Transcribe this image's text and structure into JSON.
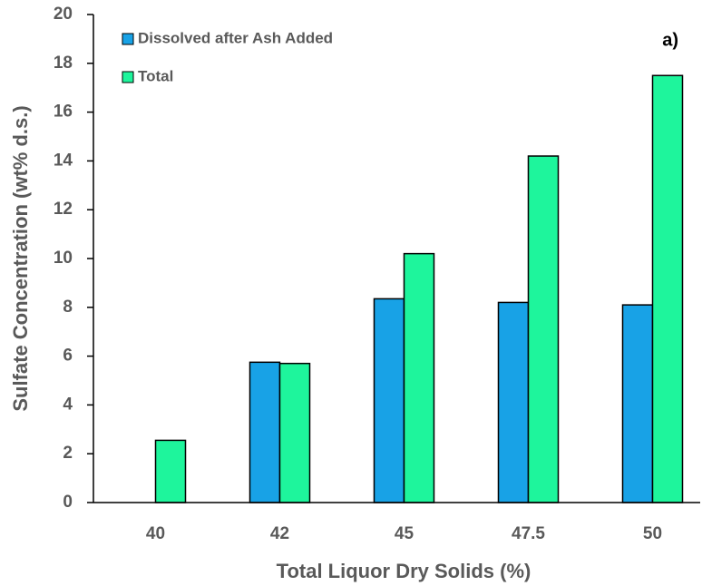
{
  "chart_data": {
    "type": "bar",
    "annotation": "a)",
    "x_label": "Total Liquor Dry Solids (%)",
    "y_label": "Sulfate Concentration (wt% d.s.)",
    "categories": [
      "40",
      "42",
      "45",
      "47.5",
      "50"
    ],
    "series": [
      {
        "name": "Dissolved after Ash Added",
        "color": "#18a2e6",
        "values": [
          null,
          5.75,
          8.35,
          8.2,
          8.1
        ]
      },
      {
        "name": "Total",
        "color": "#1ef59c",
        "values": [
          2.55,
          5.7,
          10.2,
          14.2,
          17.5
        ]
      }
    ],
    "ylim": [
      0,
      20
    ],
    "yticks": [
      0,
      2,
      4,
      6,
      8,
      10,
      12,
      14,
      16,
      18,
      20
    ],
    "legend": "upper-left"
  }
}
